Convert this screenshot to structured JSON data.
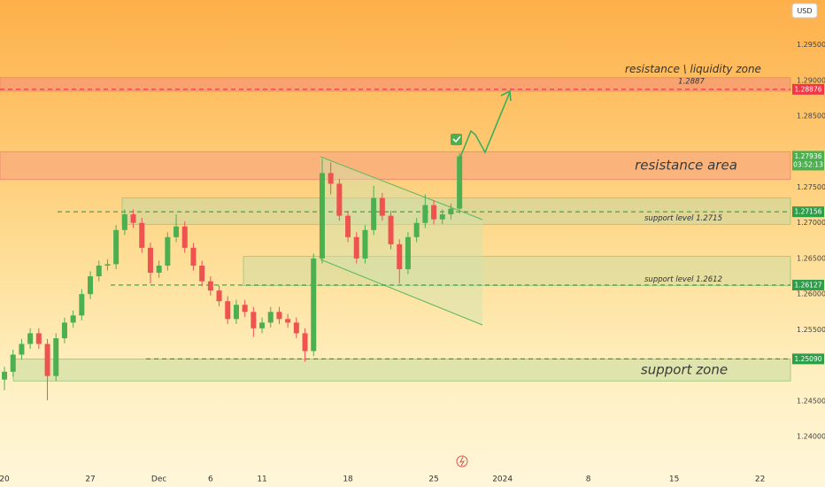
{
  "chart_data": {
    "type": "candlestick",
    "currency": "USD",
    "countdown": "03:52:13",
    "up_color": "#4caf50",
    "down_color": "#ef5350",
    "x": [
      0,
      0.5,
      1,
      1.5,
      2,
      2.5,
      3,
      3.5,
      4,
      4.5,
      5,
      5.5,
      6,
      6.5,
      7,
      7.5,
      8,
      8.5,
      9,
      9.5,
      10,
      10.5,
      11,
      11.5,
      12,
      12.5,
      13,
      13.5,
      14,
      14.5,
      15,
      15.5,
      16,
      16.5,
      17,
      17.5,
      18,
      18.5,
      19,
      19.5,
      20,
      20.5,
      21,
      21.5,
      22,
      22.5,
      23,
      23.5,
      24,
      24.5,
      25,
      25.5,
      26,
      26.5
    ],
    "open": [
      1.248,
      1.2491,
      1.2515,
      1.253,
      1.2545,
      1.253,
      1.2485,
      1.2538,
      1.256,
      1.257,
      1.26,
      1.2625,
      1.264,
      1.2642,
      1.269,
      1.2712,
      1.27,
      1.2665,
      1.263,
      1.264,
      1.268,
      1.2695,
      1.2665,
      1.264,
      1.2618,
      1.2605,
      1.259,
      1.2565,
      1.2585,
      1.2575,
      1.2552,
      1.256,
      1.2575,
      1.2565,
      1.256,
      1.2545,
      1.252,
      1.265,
      1.277,
      1.2755,
      1.271,
      1.268,
      1.265,
      1.269,
      1.2735,
      1.271,
      1.267,
      1.2635,
      1.268,
      1.27,
      1.2725,
      1.2705,
      1.2712,
      1.272
    ],
    "high": [
      1.2498,
      1.2522,
      1.2537,
      1.2552,
      1.2552,
      1.2537,
      1.2545,
      1.2567,
      1.2577,
      1.2607,
      1.2632,
      1.2647,
      1.2649,
      1.2697,
      1.2719,
      1.2719,
      1.2707,
      1.2672,
      1.2647,
      1.2687,
      1.2712,
      1.2702,
      1.2672,
      1.2647,
      1.2625,
      1.2612,
      1.2597,
      1.2592,
      1.2592,
      1.2582,
      1.2567,
      1.2582,
      1.2582,
      1.2572,
      1.2567,
      1.2552,
      1.2657,
      1.279,
      1.2785,
      1.2762,
      1.2717,
      1.2687,
      1.2697,
      1.2752,
      1.2742,
      1.2717,
      1.2677,
      1.2687,
      1.2707,
      1.274,
      1.2732,
      1.2719,
      1.2727,
      1.2798
    ],
    "low": [
      1.2465,
      1.2484,
      1.2508,
      1.2523,
      1.2523,
      1.2451,
      1.2478,
      1.2531,
      1.2553,
      1.2563,
      1.2593,
      1.2618,
      1.2633,
      1.2635,
      1.2683,
      1.2693,
      1.2658,
      1.2615,
      1.2623,
      1.2633,
      1.2673,
      1.2658,
      1.2633,
      1.2611,
      1.2598,
      1.2583,
      1.2558,
      1.2558,
      1.2568,
      1.254,
      1.2545,
      1.2553,
      1.2558,
      1.2553,
      1.2538,
      1.2505,
      1.2513,
      1.2643,
      1.274,
      1.2703,
      1.2673,
      1.2643,
      1.2643,
      1.2683,
      1.2703,
      1.2663,
      1.2615,
      1.2628,
      1.2673,
      1.2693,
      1.2698,
      1.2698,
      1.2705,
      1.2713
    ],
    "close": [
      1.2491,
      1.2515,
      1.253,
      1.2545,
      1.253,
      1.2485,
      1.2538,
      1.256,
      1.257,
      1.26,
      1.2625,
      1.264,
      1.2642,
      1.269,
      1.2712,
      1.27,
      1.2665,
      1.263,
      1.264,
      1.268,
      1.2695,
      1.2665,
      1.264,
      1.2618,
      1.2605,
      1.259,
      1.2565,
      1.2585,
      1.2575,
      1.2552,
      1.256,
      1.2575,
      1.2565,
      1.256,
      1.2545,
      1.252,
      1.265,
      1.277,
      1.2755,
      1.271,
      1.268,
      1.265,
      1.269,
      1.2735,
      1.271,
      1.267,
      1.2635,
      1.268,
      1.27,
      1.2725,
      1.2705,
      1.2712,
      1.272,
      1.27936
    ],
    "xlim": [
      -0.26,
      45.77
    ],
    "xticks": [
      {
        "value": 0,
        "label": "20"
      },
      {
        "value": 5,
        "label": "27"
      },
      {
        "value": 9,
        "label": "Dec"
      },
      {
        "value": 12,
        "label": "6"
      },
      {
        "value": 15,
        "label": "11"
      },
      {
        "value": 20,
        "label": "18"
      },
      {
        "value": 25,
        "label": "25"
      },
      {
        "value": 29,
        "label": "2024"
      },
      {
        "value": 34,
        "label": "8"
      },
      {
        "value": 39,
        "label": "15"
      },
      {
        "value": 44,
        "label": "22"
      }
    ],
    "ylim": [
      1.2354,
      1.3013
    ],
    "yticks": [
      {
        "value": 1.295,
        "label": "1.29500"
      },
      {
        "value": 1.29,
        "label": "1.29000"
      },
      {
        "value": 1.285,
        "label": "1.28500"
      },
      {
        "value": 1.275,
        "label": "1.27500"
      },
      {
        "value": 1.27,
        "label": "1.27000"
      },
      {
        "value": 1.265,
        "label": "1.26500"
      },
      {
        "value": 1.26,
        "label": "1.26000"
      },
      {
        "value": 1.255,
        "label": "1.25500"
      },
      {
        "value": 1.245,
        "label": "1.24500"
      },
      {
        "value": 1.24,
        "label": "1.24000"
      }
    ],
    "grid": false,
    "zones": [
      {
        "label": "resistance \\ liquidity zone",
        "range": [
          1.2885,
          1.2904
        ],
        "color": "#f59a74"
      },
      {
        "label": "resistance area",
        "range": [
          1.2761,
          1.28
        ],
        "color": "#f8ab7c"
      },
      {
        "label": "support level 1.2715",
        "range": [
          1.2698,
          1.2735
        ],
        "color": "#d6d79a"
      },
      {
        "label": "support level 1.2612",
        "range": [
          1.2612,
          1.2653
        ],
        "color": "#dcdc9e"
      },
      {
        "label": "support zone",
        "range": [
          1.2478,
          1.2509
        ],
        "color": "#d3e0a6"
      }
    ],
    "lines": [
      {
        "value": 1.28876,
        "label": "1.28876",
        "color": "#f23645",
        "note": "1.2887"
      },
      {
        "value": 1.27156,
        "label": "1.27156",
        "color": "#2e9e4a"
      },
      {
        "value": 1.26127,
        "label": "1.26127",
        "color": "#2e9e4a"
      },
      {
        "value": 1.2509,
        "label": "1.25090",
        "color": "#2e9e4a"
      }
    ]
  }
}
